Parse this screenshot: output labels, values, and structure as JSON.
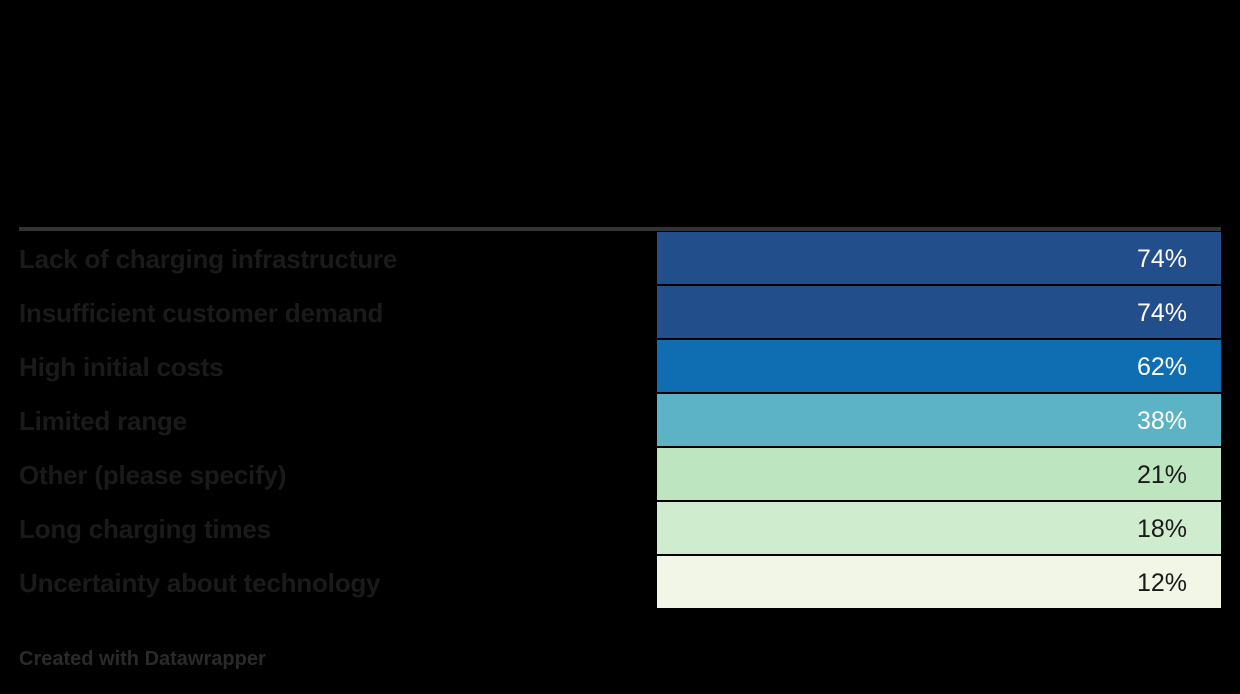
{
  "chart_data": {
    "type": "table",
    "rows": [
      {
        "label": "Lack of charging infrastructure",
        "value": 74,
        "display": "74%",
        "color": "#234e8c",
        "text_color": "#ffffff"
      },
      {
        "label": "Insufficient customer demand",
        "value": 74,
        "display": "74%",
        "color": "#234e8c",
        "text_color": "#ffffff"
      },
      {
        "label": "High initial costs",
        "value": 62,
        "display": "62%",
        "color": "#0f6db2",
        "text_color": "#ffffff"
      },
      {
        "label": "Limited range",
        "value": 38,
        "display": "38%",
        "color": "#5db3c6",
        "text_color": "#ffffff"
      },
      {
        "label": "Other (please specify)",
        "value": 21,
        "display": "21%",
        "color": "#bde5bf",
        "text_color": "#1a1a1a"
      },
      {
        "label": "Long charging times",
        "value": 18,
        "display": "18%",
        "color": "#cfeccf",
        "text_color": "#1a1a1a"
      },
      {
        "label": "Uncertainty about technology",
        "value": 12,
        "display": "12%",
        "color": "#f1f6e7",
        "text_color": "#1a1a1a"
      }
    ]
  },
  "footer": {
    "credit": "Created with Datawrapper"
  }
}
